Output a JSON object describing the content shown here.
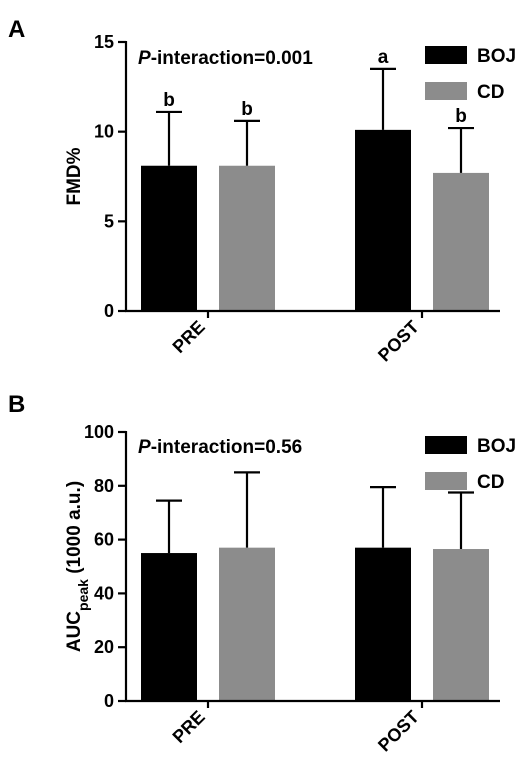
{
  "chart_data": [
    {
      "panel": "A",
      "type": "bar",
      "categories": [
        "PRE",
        "POST"
      ],
      "series": [
        {
          "name": "BOJ",
          "color": "#000000",
          "values": [
            8.1,
            10.1
          ],
          "errors": [
            3.0,
            3.4
          ],
          "labels": [
            "b",
            "a"
          ]
        },
        {
          "name": "CD",
          "color": "#8c8c8c",
          "values": [
            8.1,
            7.7
          ],
          "errors": [
            2.5,
            2.5
          ],
          "labels": [
            "b",
            "b"
          ]
        }
      ],
      "ylabel": "FMD%",
      "ylim": [
        0,
        15
      ],
      "yticks": [
        0,
        5,
        10,
        15
      ],
      "annotation": {
        "italic": "P",
        "text": "-interaction=0.001"
      },
      "legend_placement": "top-right",
      "grid": false
    },
    {
      "panel": "B",
      "type": "bar",
      "categories": [
        "PRE",
        "POST"
      ],
      "series": [
        {
          "name": "BOJ",
          "color": "#000000",
          "values": [
            55,
            57
          ],
          "errors": [
            19.5,
            22.5
          ],
          "labels": [
            "",
            ""
          ]
        },
        {
          "name": "CD",
          "color": "#8c8c8c",
          "values": [
            57,
            56.5
          ],
          "errors": [
            28,
            21
          ],
          "labels": [
            "",
            ""
          ]
        }
      ],
      "ylabel": "AUC",
      "ylabel_sub": "peak",
      "ylabel_suffix": " (1000 a.u.)",
      "ylim": [
        0,
        100
      ],
      "yticks": [
        0,
        20,
        40,
        60,
        80,
        100
      ],
      "annotation": {
        "italic": "P",
        "text": "-interaction=0.56"
      },
      "legend_placement": "top-right",
      "grid": false
    }
  ]
}
